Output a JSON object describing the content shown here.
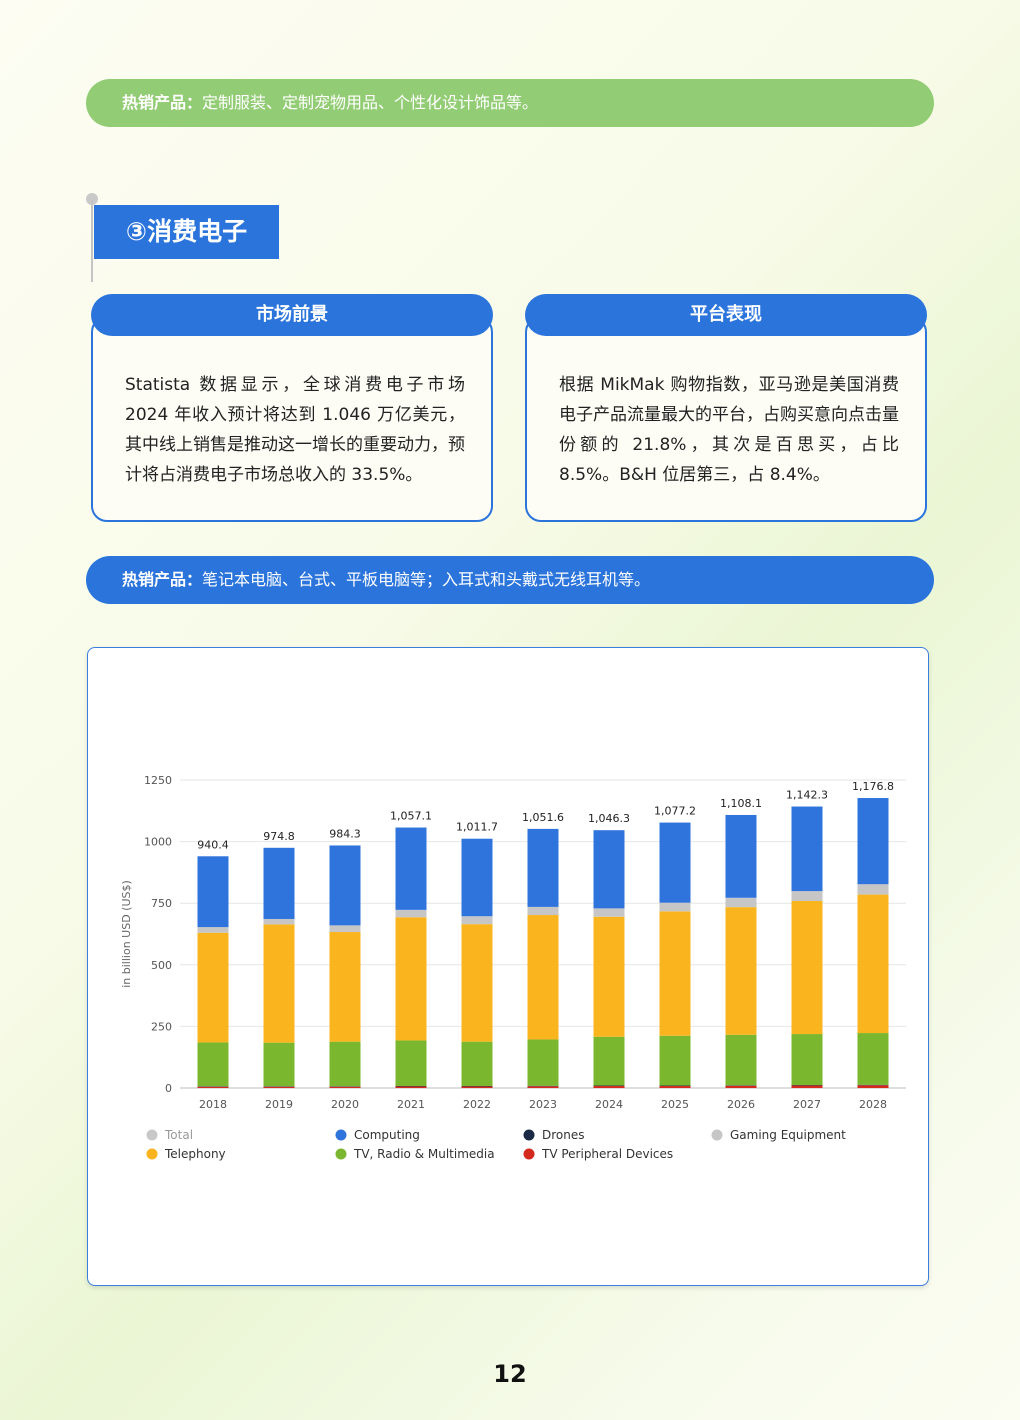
{
  "top_bar": {
    "label": "热销产品：",
    "text": "定制服装、定制宠物用品、个性化设计饰品等。"
  },
  "section": {
    "title": "③消费电子"
  },
  "cards": {
    "left": {
      "title": "市场前景",
      "text": "Statista 数据显示，全球消费电子市场 2024 年收入预计将达到 1.046 万亿美元，其中线上销售是推动这一增长的重要动力，预计将占消费电子市场总收入的 33.5%。"
    },
    "right": {
      "title": "平台表现",
      "text": "根据 MikMak 购物指数，亚马逊是美国消费电子产品流量最大的平台，占购买意向点击量份额的 21.8%，其次是百思买，占比 8.5%。B&H 位居第三，占 8.4%。"
    }
  },
  "hot_bar": {
    "label": "热销产品：",
    "text": "笔记本电脑、台式、平板电脑等；入耳式和头戴式无线耳机等。"
  },
  "chart_data": {
    "type": "bar",
    "stacked": true,
    "title": "",
    "xlabel": "",
    "ylabel": "in billion USD (US$)",
    "ylim": [
      0,
      1250
    ],
    "yticks": [
      0,
      250,
      500,
      750,
      1000,
      1250
    ],
    "grid": true,
    "legend_position": "bottom",
    "categories": [
      "2018",
      "2019",
      "2020",
      "2021",
      "2022",
      "2023",
      "2024",
      "2025",
      "2026",
      "2027",
      "2028"
    ],
    "totals": [
      940.4,
      974.8,
      984.3,
      1057.1,
      1011.7,
      1051.6,
      1046.3,
      1077.2,
      1108.1,
      1142.3,
      1176.8
    ],
    "total_labels": [
      "940.4",
      "974.8",
      "984.3",
      "1,057.1",
      "1,011.7",
      "1,051.6",
      "1,046.3",
      "1,077.2",
      "1,108.1",
      "1,142.3",
      "1,176.8"
    ],
    "series": [
      {
        "name": "TV Peripheral Devices",
        "color": "#d42a1e",
        "values": [
          5,
          5,
          5,
          6,
          6,
          7,
          8,
          8,
          9,
          10,
          11
        ]
      },
      {
        "name": "Drones",
        "color": "#1a2a44",
        "values": [
          2,
          2,
          2,
          2,
          2,
          2,
          2,
          2,
          2,
          2,
          2
        ]
      },
      {
        "name": "TV, Radio & Multimedia",
        "color": "#7ab72e",
        "values": [
          178,
          177,
          181,
          185,
          180,
          188,
          198,
          202,
          205,
          207,
          210
        ]
      },
      {
        "name": "Telephony",
        "color": "#fab51e",
        "values": [
          445,
          480,
          445,
          500,
          477,
          505,
          487,
          505,
          518,
          540,
          562
        ]
      },
      {
        "name": "Gaming Equipment",
        "color": "#c6c6c6",
        "values": [
          23,
          22,
          27,
          30,
          32,
          33,
          34,
          35,
          38,
          40,
          42
        ]
      },
      {
        "name": "Computing",
        "color": "#2f73dc",
        "values": [
          287.4,
          288.8,
          324.3,
          334.1,
          314.7,
          316.6,
          317.3,
          325.2,
          336.1,
          343.3,
          349.8
        ]
      }
    ],
    "legend": [
      {
        "name": "Total",
        "color": "#c8c8c8",
        "muted": true
      },
      {
        "name": "Computing",
        "color": "#2f73dc"
      },
      {
        "name": "Drones",
        "color": "#1a2a44"
      },
      {
        "name": "Gaming Equipment",
        "color": "#c6c6c6"
      },
      {
        "name": "Telephony",
        "color": "#fab51e"
      },
      {
        "name": "TV, Radio & Multimedia",
        "color": "#7ab72e"
      },
      {
        "name": "TV Peripheral Devices",
        "color": "#d42a1e"
      }
    ]
  },
  "page_number": "12"
}
